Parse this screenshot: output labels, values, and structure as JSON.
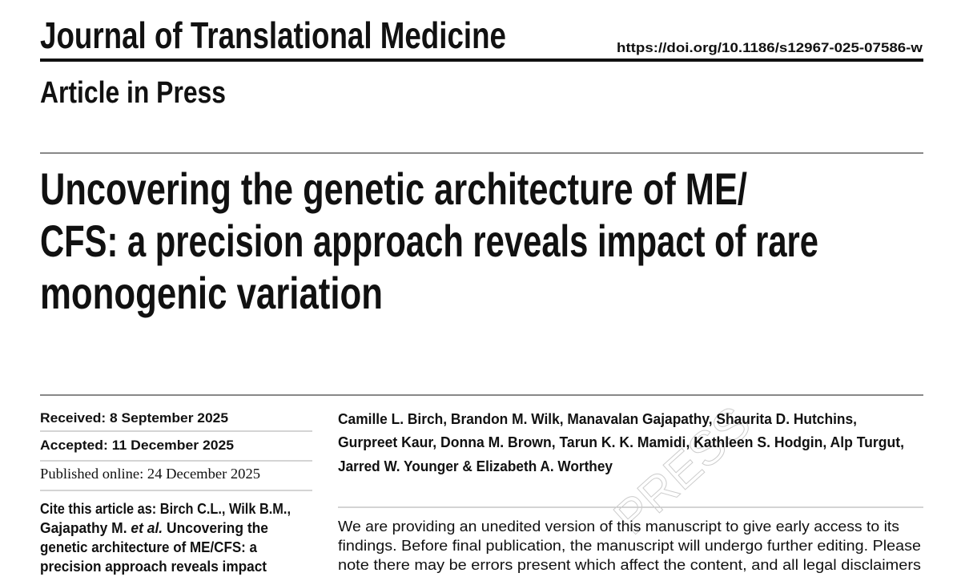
{
  "header": {
    "journal": "Journal of Translational Medicine",
    "doi": "https://doi.org/10.1186/s12967-025-07586-w",
    "status": "Article in Press"
  },
  "title_lines": [
    "Uncovering the genetic architecture of ME/",
    "CFS: a precision approach reveals impact of rare",
    "monogenic variation"
  ],
  "dates": {
    "received": "Received: 8 September 2025",
    "accepted": "Accepted: 11 December 2025",
    "published": "Published online: 24 December 2025"
  },
  "cite_lines": [
    "Cite this article as: Birch C.L., Wilk B.M.,",
    [
      "Gajapathy M. ",
      "et al.",
      " Uncovering the"
    ],
    "genetic architecture of ME/CFS: a",
    "precision approach reveals impact"
  ],
  "author_lines": [
    "Camille L. Birch, Brandon M. Wilk, Manavalan Gajapathy, Shaurita D. Hutchins,",
    "Gurpreet Kaur, Donna M. Brown, Tarun K. K. Mamidi, Kathleen S. Hodgin, Alp Turgut,",
    "Jarred W. Younger & Elizabeth A. Worthey"
  ],
  "notice_lines": [
    "We are providing an unedited version of this manuscript to give early access to its",
    "findings. Before final publication, the manuscript will undergo further editing. Please",
    "note there may be errors present which affect the content, and all legal disclaimers"
  ],
  "watermark": "PRESS"
}
